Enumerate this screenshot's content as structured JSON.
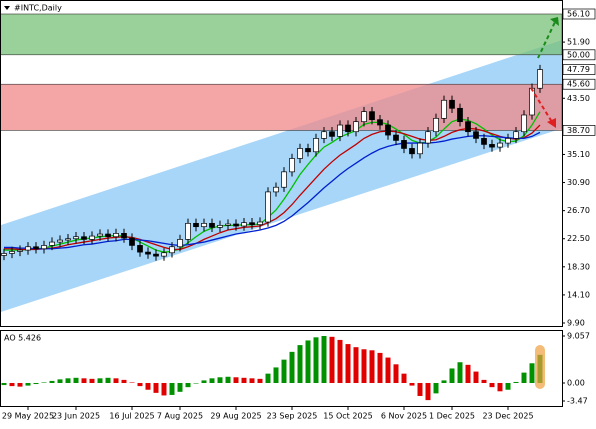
{
  "chart_data": {
    "type": "candlestick",
    "title": "#INTC,Daily",
    "categories": [
      null,
      null,
      null,
      "29 May 2025",
      null,
      null,
      null,
      null,
      null,
      "23 Jun 2025",
      null,
      null,
      null,
      null,
      null,
      null,
      "16 Jul 2025",
      null,
      null,
      null,
      null,
      null,
      "7 Aug 2025",
      null,
      null,
      null,
      null,
      null,
      null,
      "29 Aug 2025",
      null,
      null,
      null,
      null,
      null,
      null,
      "23 Sep 2025",
      null,
      null,
      null,
      null,
      null,
      null,
      "15 Oct 2025",
      null,
      null,
      null,
      null,
      null,
      null,
      "6 Nov 2025",
      null,
      null,
      null,
      null,
      null,
      "1 Dec 2025",
      null,
      null,
      null,
      null,
      null,
      null,
      "23 Dec 2025",
      null,
      null,
      null,
      null
    ],
    "open": [
      20.0,
      20.3,
      20.6,
      20.8,
      21.3,
      21.0,
      21.5,
      22.0,
      22.3,
      22.5,
      22.8,
      22.4,
      22.9,
      23.2,
      22.8,
      23.3,
      22.6,
      21.5,
      20.5,
      20.2,
      19.9,
      20.4,
      21.3,
      22.4,
      24.8,
      24.3,
      24.8,
      24.2,
      24.5,
      24.7,
      24.4,
      24.9,
      24.6,
      25.0,
      29.5,
      30.2,
      32.5,
      34.5,
      36.0,
      35.5,
      37.5,
      38.5,
      37.8,
      39.5,
      38.5,
      40.0,
      41.5,
      40.3,
      39.5,
      38.0,
      37.2,
      36.0,
      35.2,
      36.8,
      38.5,
      40.5,
      43.2,
      42.0,
      40.0,
      38.5,
      37.5,
      36.6,
      36.2,
      36.8,
      37.5,
      38.5,
      41.0,
      45.0
    ],
    "high": [
      21.0,
      21.3,
      21.5,
      22.0,
      22.0,
      22.2,
      22.7,
      23.0,
      23.2,
      23.5,
      23.5,
      23.6,
      23.9,
      23.9,
      24.0,
      24.0,
      23.3,
      22.2,
      21.2,
      20.9,
      21.1,
      22.0,
      23.1,
      25.5,
      25.5,
      25.5,
      25.5,
      25.2,
      25.4,
      25.4,
      25.6,
      25.6,
      25.7,
      30.2,
      30.9,
      33.2,
      35.2,
      36.7,
      36.7,
      38.2,
      39.2,
      39.2,
      40.2,
      40.2,
      40.7,
      42.2,
      42.2,
      41.0,
      40.2,
      38.7,
      37.9,
      36.7,
      37.5,
      39.2,
      41.2,
      43.9,
      43.9,
      42.7,
      40.7,
      39.2,
      38.2,
      37.3,
      37.5,
      38.2,
      39.2,
      41.7,
      45.7,
      48.5
    ],
    "low": [
      19.3,
      19.6,
      19.9,
      20.1,
      20.3,
      20.3,
      20.8,
      21.3,
      21.6,
      21.8,
      21.7,
      21.7,
      22.2,
      22.1,
      22.1,
      21.9,
      20.8,
      19.8,
      19.5,
      19.2,
      19.2,
      19.7,
      20.6,
      21.7,
      23.6,
      23.6,
      23.5,
      23.5,
      23.8,
      23.7,
      23.7,
      23.9,
      23.9,
      24.3,
      28.8,
      29.5,
      31.8,
      33.8,
      34.8,
      34.8,
      36.8,
      37.1,
      37.1,
      37.8,
      37.8,
      39.3,
      39.6,
      38.8,
      37.3,
      36.5,
      35.3,
      34.5,
      34.5,
      36.1,
      37.8,
      39.8,
      41.3,
      39.3,
      37.8,
      36.8,
      35.9,
      35.5,
      35.5,
      36.1,
      36.8,
      37.8,
      40.3,
      44.3
    ],
    "close": [
      20.3,
      20.6,
      20.8,
      21.3,
      21.0,
      21.5,
      22.0,
      22.3,
      22.5,
      22.8,
      22.4,
      22.9,
      23.2,
      22.8,
      23.3,
      22.6,
      21.5,
      20.5,
      20.2,
      19.9,
      20.4,
      21.3,
      22.4,
      24.8,
      24.3,
      24.8,
      24.2,
      24.5,
      24.7,
      24.4,
      24.9,
      24.6,
      25.0,
      29.5,
      30.2,
      32.5,
      34.5,
      36.0,
      35.5,
      37.5,
      38.5,
      37.8,
      39.5,
      38.5,
      40.0,
      41.5,
      40.3,
      39.5,
      38.0,
      37.2,
      36.0,
      35.2,
      36.8,
      38.5,
      40.5,
      43.2,
      42.0,
      40.0,
      38.5,
      37.5,
      36.6,
      36.2,
      36.8,
      37.5,
      38.5,
      41.0,
      45.0,
      47.79
    ],
    "up_color": "#ffffff",
    "down_color": "#000000",
    "moving_averages": [
      {
        "color": "#00c000",
        "values": [
          20.8,
          20.8,
          20.8,
          20.9,
          21.0,
          21.1,
          21.4,
          21.7,
          22.0,
          22.3,
          22.5,
          22.6,
          22.8,
          22.9,
          23.0,
          22.9,
          22.6,
          22.0,
          21.4,
          20.8,
          20.5,
          20.6,
          21.0,
          21.9,
          22.8,
          23.6,
          24.1,
          24.4,
          24.5,
          24.5,
          24.6,
          24.6,
          24.7,
          25.7,
          26.8,
          28.4,
          30.2,
          32.1,
          33.6,
          35.0,
          36.2,
          36.9,
          37.7,
          38.2,
          38.7,
          39.6,
          39.9,
          39.9,
          39.6,
          38.9,
          38.1,
          37.2,
          36.8,
          37.0,
          37.7,
          38.9,
          40.0,
          40.4,
          40.2,
          39.7,
          38.9,
          38.0,
          37.3,
          37.0,
          37.1,
          37.9,
          39.5,
          41.5
        ]
      },
      {
        "color": "#c00000",
        "values": [
          21.0,
          21.0,
          20.9,
          20.9,
          20.9,
          21.0,
          21.1,
          21.3,
          21.6,
          21.8,
          22.0,
          22.2,
          22.4,
          22.6,
          22.7,
          22.8,
          22.7,
          22.4,
          22.0,
          21.6,
          21.2,
          20.9,
          20.9,
          21.3,
          21.8,
          22.4,
          22.9,
          23.4,
          23.8,
          24.0,
          24.2,
          24.3,
          24.4,
          24.9,
          25.5,
          26.4,
          27.6,
          29.0,
          30.3,
          31.6,
          32.9,
          34.0,
          35.0,
          35.8,
          36.6,
          37.5,
          38.1,
          38.5,
          38.6,
          38.5,
          38.2,
          37.8,
          37.4,
          37.2,
          37.3,
          37.8,
          38.4,
          38.8,
          39.0,
          38.9,
          38.6,
          38.2,
          37.8,
          37.5,
          37.4,
          37.6,
          38.3,
          39.5
        ]
      },
      {
        "color": "#0020d0",
        "values": [
          21.2,
          21.2,
          21.1,
          21.1,
          21.0,
          21.0,
          21.0,
          21.1,
          21.2,
          21.4,
          21.6,
          21.7,
          21.9,
          22.1,
          22.2,
          22.4,
          22.4,
          22.3,
          22.2,
          22.0,
          21.8,
          21.6,
          21.5,
          21.6,
          21.8,
          22.0,
          22.3,
          22.6,
          22.9,
          23.2,
          23.4,
          23.6,
          23.8,
          24.1,
          24.5,
          25.1,
          25.9,
          26.9,
          27.9,
          29.0,
          30.1,
          31.1,
          32.1,
          33.0,
          33.8,
          34.6,
          35.3,
          35.9,
          36.3,
          36.6,
          36.8,
          36.8,
          36.8,
          36.8,
          36.9,
          37.1,
          37.4,
          37.6,
          37.8,
          37.9,
          37.9,
          37.8,
          37.7,
          37.6,
          37.5,
          37.5,
          37.8,
          38.4
        ]
      }
    ],
    "ylim": [
      9.9,
      56.1
    ],
    "yticks": [
      {
        "value": 51.9,
        "label": "51.90"
      },
      {
        "value": 43.5,
        "label": "43.50"
      },
      {
        "value": 35.1,
        "label": "35.10"
      },
      {
        "value": 30.9,
        "label": "30.90"
      },
      {
        "value": 26.7,
        "label": "26.70"
      },
      {
        "value": 22.5,
        "label": "22.50"
      },
      {
        "value": 18.3,
        "label": "18.30"
      },
      {
        "value": 14.1,
        "label": "14.10"
      },
      {
        "value": 9.9,
        "label": "9.90"
      }
    ],
    "levels": [
      {
        "value": 56.1,
        "label": "56.10"
      },
      {
        "value": 50,
        "label": "50.00"
      },
      {
        "value": 47.79,
        "label": "47.79"
      },
      {
        "value": 45.6,
        "label": "45.60"
      },
      {
        "value": 38.7,
        "label": "38.70"
      }
    ],
    "zones": [
      {
        "from": 50,
        "to": 56.1,
        "color": "#78c078"
      },
      {
        "from": 38.7,
        "to": 45.6,
        "color": "#f08888"
      }
    ],
    "channel": {
      "upper": [
        24.5,
        52.2
      ],
      "lower": [
        11.5,
        39.0
      ],
      "color": "#a8d6f8"
    },
    "indicator": {
      "type": "bar",
      "title": "AO 5.426",
      "values": [
        -0.4,
        -0.6,
        -0.7,
        -0.5,
        -0.2,
        0.1,
        0.4,
        0.7,
        0.9,
        1.0,
        0.9,
        0.8,
        0.9,
        1.0,
        0.9,
        0.6,
        0.1,
        -0.6,
        -1.3,
        -1.9,
        -2.4,
        -2.3,
        -1.7,
        -0.8,
        0.0,
        0.5,
        0.9,
        1.1,
        1.2,
        1.1,
        1.0,
        0.9,
        0.8,
        1.8,
        3.0,
        4.5,
        6.0,
        7.3,
        8.2,
        8.8,
        9.057,
        8.9,
        8.3,
        7.5,
        6.9,
        6.5,
        6.3,
        5.8,
        4.9,
        3.6,
        1.8,
        -0.5,
        -2.5,
        -3.3,
        -2.0,
        0.5,
        2.8,
        4.0,
        3.5,
        2.2,
        0.6,
        -0.8,
        -1.6,
        -1.3,
        0.2,
        2.0,
        3.8,
        5.426
      ],
      "up_color": "#009000",
      "down_color": "#e00000",
      "ylim": [
        -3.47,
        9.057
      ],
      "yticks": [
        {
          "value": 9.057,
          "label": "9.057"
        },
        {
          "value": 0,
          "label": "0.00"
        },
        {
          "value": -3.47,
          "label": "-3.47"
        }
      ]
    }
  }
}
